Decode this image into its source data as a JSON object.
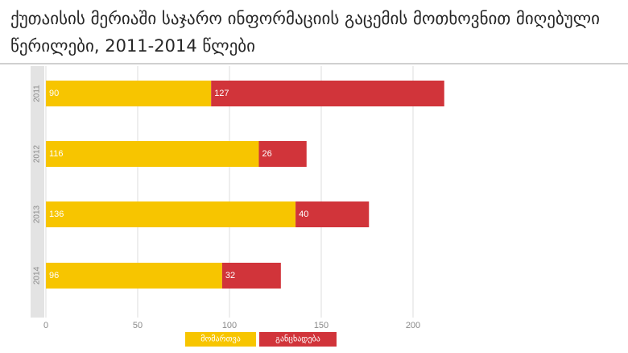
{
  "title_lines": [
    "ქუთაისის მერიაში საჯარო ინფორმაციის გაცემის მოთხოვნით მიღებული",
    "წერილები, 2011-2014 წლები"
  ],
  "chart_data": {
    "type": "bar",
    "orientation": "horizontal",
    "stacked": true,
    "categories": [
      "2011",
      "2012",
      "2013",
      "2014"
    ],
    "series": [
      {
        "name": "მომართვა",
        "values": [
          90,
          116,
          136,
          96
        ],
        "color": "#f7c500"
      },
      {
        "name": "განცხადება",
        "values": [
          127,
          26,
          40,
          32
        ],
        "color": "#d1343a"
      }
    ],
    "xlim": [
      0,
      220
    ],
    "x_ticks": [
      0,
      50,
      100,
      150,
      200
    ],
    "grid": true,
    "legend_position": "bottom"
  }
}
